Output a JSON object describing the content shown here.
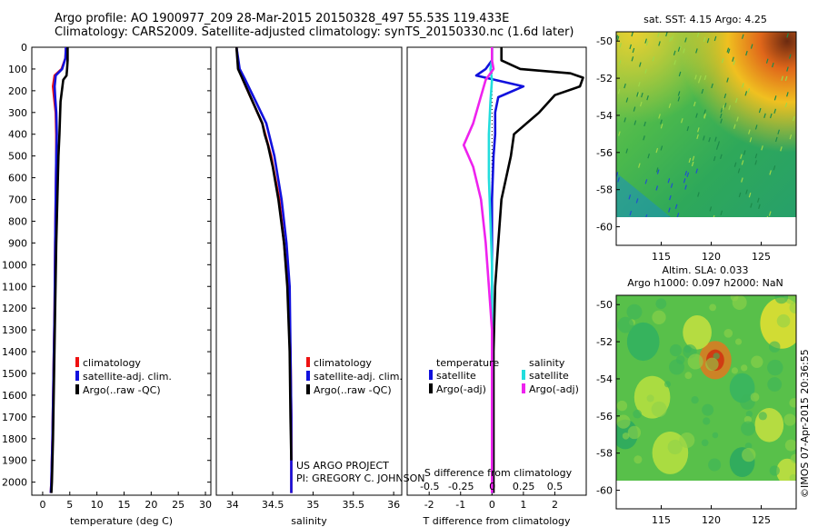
{
  "header": {
    "title_line1": "Argo profile: AO 1900977_209 28-Mar-2015 20150328_497 55.53S 119.433E",
    "title_line2": "Climatology: CARS2009. Satellite-adjusted climatology: synTS_20150330.nc (1.6d later)"
  },
  "credits": {
    "project": "US ARGO PROJECT",
    "pi": "PI: GREGORY C. JOHNSON",
    "imos": "©IMOS 07-Apr-2015 20:36:55"
  },
  "colors": {
    "climatology": "#ee1111",
    "satellite": "#1111dd",
    "argo": "#000000",
    "salinity_satellite": "#22dddd",
    "salinity_argo": "#ee22ee"
  },
  "chart_data": [
    {
      "type": "line",
      "panel": "temperature",
      "xlabel": "temperature (deg C)",
      "ylabel": "",
      "xlim": [
        -2,
        31
      ],
      "ylim": [
        2060,
        0
      ],
      "xticks": [
        0,
        5,
        10,
        15,
        20,
        25,
        30
      ],
      "yticks": [
        0,
        100,
        200,
        300,
        400,
        500,
        600,
        700,
        800,
        900,
        1000,
        1100,
        1200,
        1300,
        1400,
        1500,
        1600,
        1700,
        1800,
        1900,
        2000
      ],
      "legend": [
        "climatology",
        "satellite-adj. clim.",
        "Argo(..raw -QC)"
      ],
      "legend_position": "center-right",
      "series": [
        {
          "name": "climatology",
          "color": "#ee1111",
          "x": [
            4.3,
            4.2,
            3.5,
            2.2,
            1.9,
            2.1,
            2.4,
            2.5,
            2.5,
            2.4,
            2.3,
            2.2,
            2.0,
            1.8,
            1.6,
            1.5
          ],
          "depth": [
            0,
            50,
            100,
            130,
            180,
            230,
            300,
            400,
            500,
            700,
            900,
            1200,
            1500,
            1800,
            2000,
            2050
          ]
        },
        {
          "name": "satellite-adj. clim.",
          "color": "#1111dd",
          "x": [
            4.3,
            4.2,
            3.6,
            2.4,
            2.2,
            2.3,
            2.5,
            2.6,
            2.5,
            2.4,
            2.3,
            2.2,
            2.0,
            1.8,
            1.6,
            1.5
          ],
          "depth": [
            0,
            50,
            100,
            130,
            180,
            230,
            300,
            400,
            500,
            700,
            900,
            1200,
            1500,
            1800,
            2000,
            2050
          ]
        },
        {
          "name": "Argo(..raw -QC)",
          "color": "#000000",
          "x": [
            4.6,
            4.6,
            4.5,
            4.4,
            3.8,
            3.3,
            3.1,
            2.9,
            2.7,
            2.5,
            2.3,
            2.1,
            1.9,
            1.7,
            1.6
          ],
          "depth": [
            0,
            60,
            100,
            130,
            150,
            250,
            400,
            500,
            700,
            900,
            1200,
            1500,
            1800,
            2000,
            2050
          ]
        }
      ]
    },
    {
      "type": "line",
      "panel": "salinity",
      "xlabel": "salinity",
      "ylabel": "",
      "xlim": [
        33.8,
        36.1
      ],
      "ylim": [
        2060,
        0
      ],
      "xticks": [
        34,
        34.5,
        35,
        35.5,
        36
      ],
      "xtick_labels": [
        "34",
        "34.5",
        "35",
        "35.5",
        "36"
      ],
      "legend": [
        "climatology",
        "satellite-adj. clim.",
        "Argo(..raw -QC)"
      ],
      "legend_position": "center-right",
      "series": [
        {
          "name": "climatology",
          "color": "#ee1111",
          "x": [
            34.05,
            34.08,
            34.13,
            34.25,
            34.37,
            34.48,
            34.58,
            34.64,
            34.69,
            34.72,
            34.73,
            34.73,
            34.73
          ],
          "depth": [
            0,
            100,
            150,
            250,
            350,
            500,
            700,
            900,
            1100,
            1400,
            1700,
            2000,
            2050
          ]
        },
        {
          "name": "satellite-adj. clim.",
          "color": "#1111dd",
          "x": [
            34.05,
            34.09,
            34.16,
            34.29,
            34.42,
            34.52,
            34.61,
            34.67,
            34.71,
            34.72,
            34.73,
            34.73,
            34.73
          ],
          "depth": [
            0,
            100,
            150,
            250,
            350,
            500,
            700,
            900,
            1100,
            1400,
            1700,
            2000,
            2050
          ]
        },
        {
          "name": "Argo(..raw -QC)",
          "color": "#000000",
          "x": [
            34.05,
            34.07,
            34.13,
            34.25,
            34.37,
            34.4,
            34.44,
            34.5,
            34.57,
            34.64,
            34.68,
            34.71,
            34.72,
            34.73
          ],
          "depth": [
            0,
            100,
            150,
            250,
            350,
            400,
            450,
            550,
            700,
            900,
            1100,
            1400,
            1700,
            1900
          ]
        }
      ]
    },
    {
      "type": "line",
      "panel": "difference",
      "xlabel": "T difference from climatology",
      "ylabel": "",
      "xlim": [
        -2.7,
        3.0
      ],
      "ylim": [
        2060,
        0
      ],
      "xticks": [
        -2,
        -1,
        0,
        1,
        2
      ],
      "top_axis_label": "S difference from climatology",
      "top_ticks": [
        -0.5,
        -0.25,
        0,
        0.25,
        0.5
      ],
      "top_tick_labels": [
        "-0.5",
        "-0.25",
        "0",
        "0.25",
        "0.5"
      ],
      "legend_groups": [
        {
          "title": "temperature",
          "entries": [
            "satellite",
            "Argo(-adj)"
          ]
        },
        {
          "title": "salinity",
          "entries": [
            "satellite",
            "Argo(-adj)"
          ]
        }
      ],
      "legend_position": "center",
      "series": [
        {
          "name": "satellite",
          "group": "temperature",
          "color": "#1111dd",
          "x": [
            0,
            0,
            -0.2,
            -0.5,
            1.0,
            0.2,
            0.1,
            0.1,
            0.05,
            0,
            0,
            0,
            0,
            0,
            0,
            0
          ],
          "depth": [
            0,
            60,
            100,
            130,
            180,
            230,
            300,
            400,
            500,
            700,
            900,
            1100,
            1400,
            1700,
            2000,
            2050
          ]
        },
        {
          "name": "Argo(-adj)",
          "group": "temperature",
          "color": "#000000",
          "x": [
            0.3,
            0.3,
            0.9,
            2.5,
            2.9,
            2.8,
            2.0,
            1.5,
            0.7,
            0.6,
            0.3,
            0.2,
            0.1,
            0.05,
            0.05,
            0.05
          ],
          "depth": [
            0,
            60,
            100,
            120,
            140,
            180,
            220,
            300,
            400,
            500,
            700,
            900,
            1100,
            1400,
            1700,
            2050
          ]
        },
        {
          "name": "satellite",
          "group": "salinity",
          "color": "#22dddd",
          "x": [
            0,
            0,
            -0.05,
            0,
            -0.05,
            -0.1,
            -0.1,
            -0.05,
            0,
            0,
            0,
            0
          ],
          "depth": [
            0,
            60,
            100,
            150,
            250,
            400,
            600,
            800,
            1000,
            1300,
            1700,
            2050
          ]
        },
        {
          "name": "Argo(-adj)",
          "group": "salinity",
          "color": "#ee22ee",
          "x": [
            0,
            0,
            0.05,
            -0.2,
            -0.4,
            -0.6,
            -0.9,
            -0.6,
            -0.35,
            -0.2,
            -0.1,
            0,
            0,
            0
          ],
          "depth": [
            0,
            60,
            100,
            150,
            250,
            350,
            450,
            550,
            700,
            900,
            1100,
            1300,
            1700,
            2050
          ]
        }
      ]
    },
    {
      "type": "heatmap",
      "panel": "sst_map",
      "title": "sat. SST: 4.15 Argo: 4.25",
      "xticks": [
        115,
        120,
        125
      ],
      "yticks": [
        -50,
        -52,
        -54,
        -56,
        -58,
        -60
      ],
      "xlim": [
        110.5,
        128.5
      ],
      "ylim": [
        -61,
        -49.5
      ]
    },
    {
      "type": "heatmap",
      "panel": "sla_map",
      "title": "Altim. SLA: 0.033",
      "subtitle": "Argo h1000: 0.097 h2000: NaN",
      "xticks": [
        115,
        120,
        125
      ],
      "yticks": [
        -50,
        -52,
        -54,
        -56,
        -58,
        -60
      ],
      "xlim": [
        110.5,
        128.5
      ],
      "ylim": [
        -61,
        -49.5
      ]
    }
  ]
}
